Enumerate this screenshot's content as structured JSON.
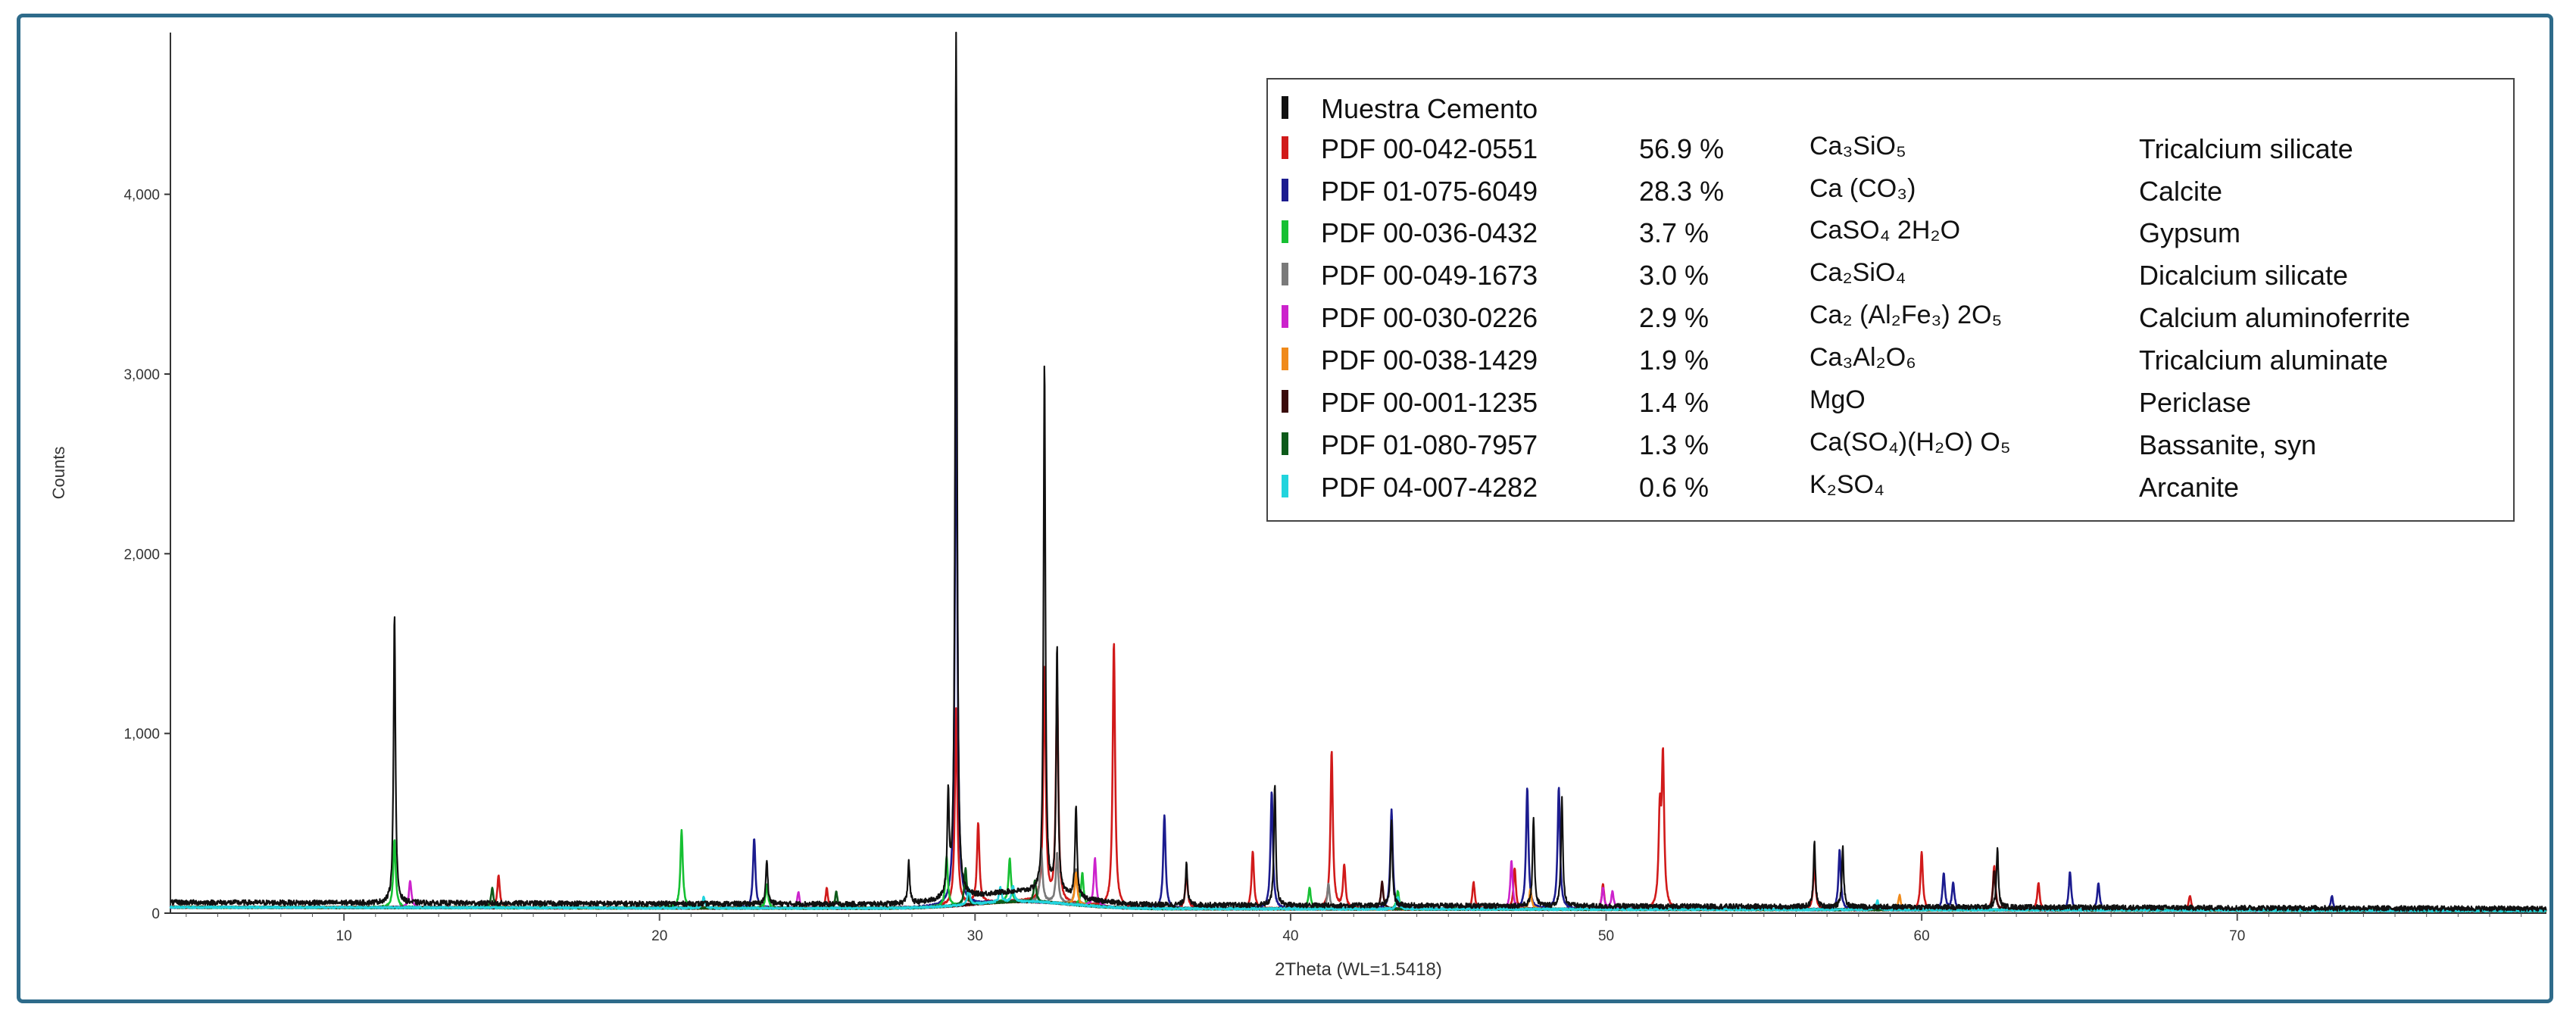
{
  "chart_data": {
    "type": "line",
    "title": "",
    "xlabel": "2Theta    (WL=1.5418)",
    "ylabel": "Counts",
    "xlim": [
      4.5,
      79.8
    ],
    "ylim": [
      0,
      4900
    ],
    "x_ticks": [
      10,
      20,
      30,
      40,
      50,
      60,
      70
    ],
    "y_ticks": [
      0,
      1000,
      2000,
      3000,
      4000
    ],
    "y_tick_labels": [
      "0",
      "1,000",
      "2,000",
      "3,000",
      "4,000"
    ],
    "grid": false,
    "legend_placement": "top-right",
    "background": {
      "baseline": 60,
      "hump_center": 31.5,
      "hump_height": 70,
      "hump_width": 2.2,
      "end_value": 25
    },
    "series": [
      {
        "name": "Muestra Cemento",
        "color": "#111111",
        "role": "pattern",
        "peaks": [
          [
            11.6,
            1620
          ],
          [
            29.4,
            4900
          ],
          [
            29.15,
            560
          ],
          [
            32.2,
            2960
          ],
          [
            32.6,
            1380
          ],
          [
            33.2,
            520
          ],
          [
            23.4,
            250
          ],
          [
            27.9,
            230
          ],
          [
            36.7,
            240
          ],
          [
            39.5,
            680
          ],
          [
            43.2,
            480
          ],
          [
            47.7,
            500
          ],
          [
            48.6,
            600
          ],
          [
            56.6,
            360
          ],
          [
            57.5,
            330
          ],
          [
            62.4,
            330
          ]
        ]
      },
      {
        "pdf": "PDF 00-042-0551",
        "pct": "56.9 %",
        "formula": "Ca₃SiO₅",
        "name": "Tricalcium silicate",
        "color": "#d11a1a",
        "peaks": [
          [
            14.9,
            180
          ],
          [
            25.3,
            110
          ],
          [
            29.4,
            1100
          ],
          [
            30.1,
            450
          ],
          [
            32.2,
            1300
          ],
          [
            32.6,
            1200
          ],
          [
            34.4,
            1480
          ],
          [
            36.7,
            200
          ],
          [
            38.8,
            320
          ],
          [
            41.3,
            880
          ],
          [
            41.7,
            240
          ],
          [
            45.8,
            150
          ],
          [
            47.1,
            230
          ],
          [
            49.9,
            140
          ],
          [
            51.8,
            820
          ],
          [
            51.7,
            500
          ],
          [
            56.6,
            250
          ],
          [
            60.0,
            320
          ],
          [
            62.3,
            250
          ],
          [
            63.7,
            150
          ],
          [
            68.5,
            80
          ]
        ]
      },
      {
        "pdf": "PDF 01-075-6049",
        "pct": "28.3 %",
        "formula": "Ca (CO₃)",
        "name": "Calcite",
        "color": "#1c1c8f",
        "peaks": [
          [
            23.0,
            390
          ],
          [
            29.4,
            3130
          ],
          [
            36.0,
            520
          ],
          [
            39.4,
            650
          ],
          [
            43.2,
            550
          ],
          [
            47.5,
            680
          ],
          [
            48.5,
            680
          ],
          [
            57.4,
            330
          ],
          [
            60.7,
            200
          ],
          [
            61.0,
            150
          ],
          [
            64.7,
            210
          ],
          [
            65.6,
            150
          ],
          [
            73.0,
            80
          ]
        ]
      },
      {
        "pdf": "PDF 00-036-0432",
        "pct": "3.7 %",
        "formula": "CaSO₄ 2H₂O",
        "name": "Gypsum",
        "color": "#16c032",
        "peaks": [
          [
            11.6,
            380
          ],
          [
            20.7,
            430
          ],
          [
            23.4,
            130
          ],
          [
            29.1,
            280
          ],
          [
            31.1,
            240
          ],
          [
            33.4,
            180
          ],
          [
            40.6,
            120
          ],
          [
            43.4,
            100
          ]
        ]
      },
      {
        "pdf": "PDF 00-049-1673",
        "pct": "3.0 %",
        "formula": "Ca₂SiO₄",
        "name": "Dicalcium silicate",
        "color": "#7a7a7a",
        "peaks": [
          [
            32.1,
            300
          ],
          [
            32.6,
            280
          ],
          [
            33.2,
            200
          ],
          [
            41.2,
            140
          ]
        ]
      },
      {
        "pdf": "PDF 00-030-0226",
        "pct": "2.9 %",
        "formula": "Ca₂ (Al₂Fe₃) 2O₅",
        "name": "Calcium aluminoferrite",
        "color": "#cc22cc",
        "peaks": [
          [
            12.1,
            150
          ],
          [
            24.4,
            90
          ],
          [
            33.8,
            270
          ],
          [
            47.0,
            270
          ],
          [
            49.9,
            120
          ],
          [
            50.2,
            100
          ]
        ]
      },
      {
        "pdf": "PDF 00-038-1429",
        "pct": "1.9 %",
        "formula": "Ca₃Al₂O₆",
        "name": "Tricalcium aluminate",
        "color": "#f08a1a",
        "peaks": [
          [
            33.2,
            180
          ],
          [
            47.6,
            110
          ],
          [
            59.3,
            80
          ]
        ]
      },
      {
        "pdf": "PDF 00-001-1235",
        "pct": "1.4 %",
        "formula": "MgO",
        "name": "Periclase",
        "color": "#3a0a0a",
        "peaks": [
          [
            42.9,
            150
          ],
          [
            62.3,
            220
          ]
        ]
      },
      {
        "pdf": "PDF 01-080-7957",
        "pct": "1.3 %",
        "formula": "Ca(SO₄)(H₂O) O₅",
        "name": "Bassanite, syn",
        "color": "#0d5a1a",
        "peaks": [
          [
            14.7,
            110
          ],
          [
            25.6,
            90
          ],
          [
            29.7,
            200
          ],
          [
            31.9,
            120
          ]
        ]
      },
      {
        "pdf": "PDF 04-007-4282",
        "pct": "0.6 %",
        "formula": "K₂SO₄",
        "name": "Arcanite",
        "color": "#22d4dd",
        "peaks": [
          [
            21.4,
            60
          ],
          [
            29.8,
            90
          ],
          [
            30.8,
            80
          ],
          [
            31.2,
            90
          ],
          [
            43.4,
            70
          ],
          [
            58.6,
            50
          ]
        ]
      }
    ]
  }
}
